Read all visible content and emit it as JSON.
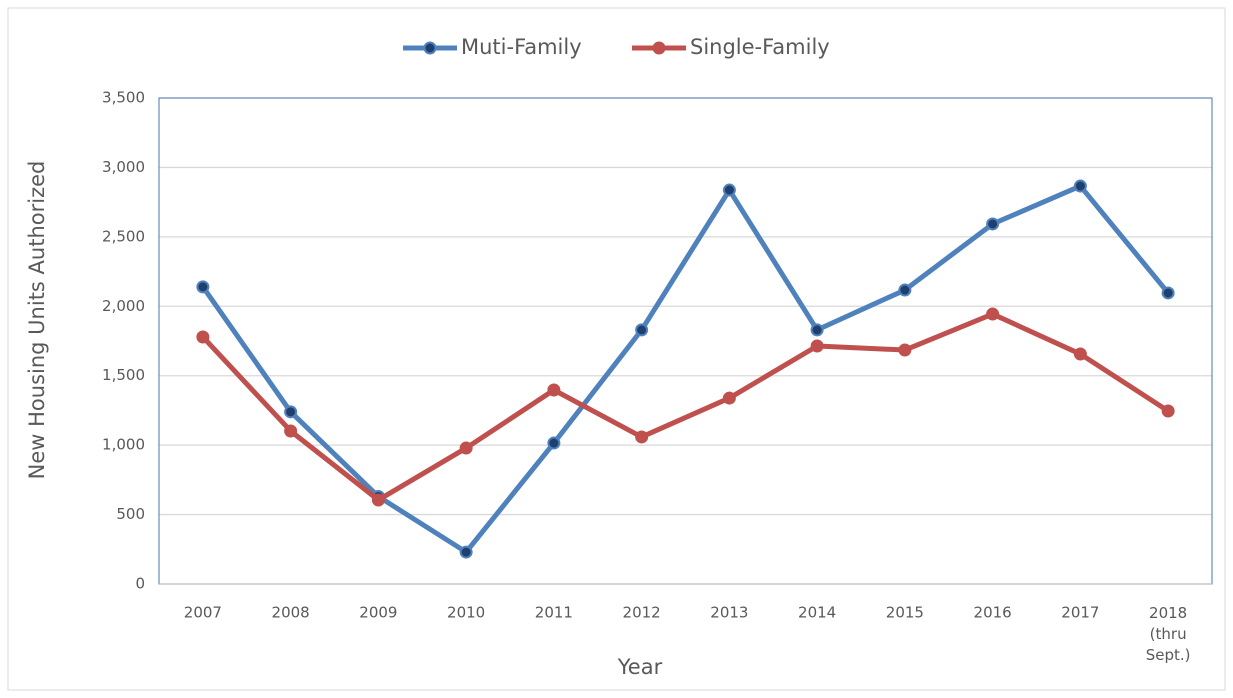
{
  "chart_data": {
    "type": "line",
    "xlabel": "Year",
    "ylabel": "New Housing Units Authorized",
    "categories": [
      "2007",
      "2008",
      "2009",
      "2010",
      "2011",
      "2012",
      "2013",
      "2014",
      "2015",
      "2016",
      "2017",
      "2018 (thru Sept.)"
    ],
    "series": [
      {
        "name": "Muti-Family",
        "color": "#4f81bd",
        "marker_color": "#1f3f6e",
        "values": [
          2140,
          1240,
          630,
          230,
          1015,
          1830,
          2837,
          1830,
          2117,
          2593,
          2866,
          2096
        ]
      },
      {
        "name": "Single-Family",
        "color": "#c0504d",
        "marker_color": "#c0504d",
        "values": [
          1779,
          1102,
          605,
          979,
          1397,
          1059,
          1339,
          1714,
          1685,
          1944,
          1656,
          1246
        ]
      }
    ],
    "ylim": [
      0,
      3500
    ],
    "yticks": [
      0,
      500,
      {
        "value": 1000,
        "label": "1,000"
      },
      {
        "value": 1500,
        "label": "1,500"
      },
      {
        "value": 2000,
        "label": "2,000"
      },
      {
        "value": 2500,
        "label": "2,500"
      },
      {
        "value": 3000,
        "label": "3,000"
      },
      {
        "value": 3500,
        "label": "3,500"
      }
    ],
    "grid": true,
    "legend": "top"
  }
}
